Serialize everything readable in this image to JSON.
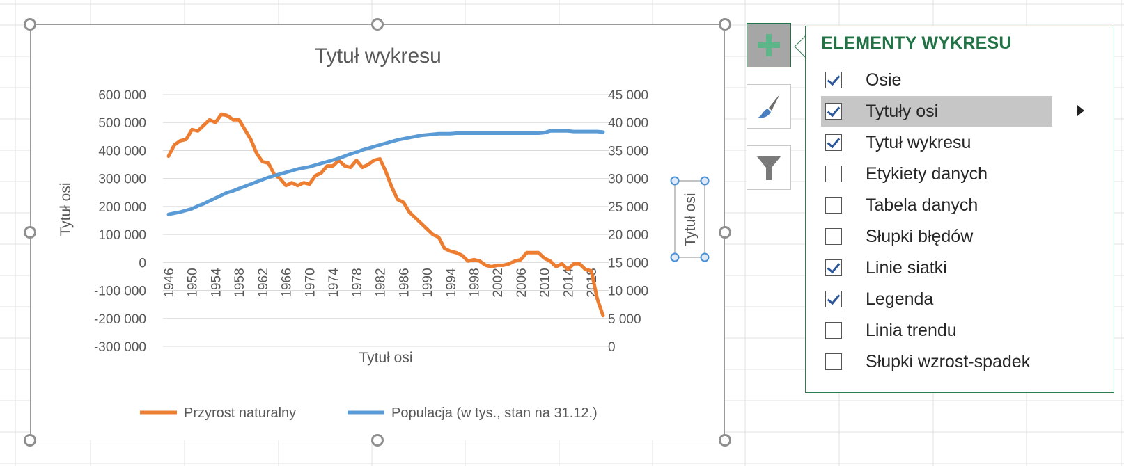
{
  "chart": {
    "title": "Tytuł wykresu",
    "x_axis_title": "Tytuł osi",
    "y_axis_title": "Tytuł osi",
    "y2_axis_title": "Tytuł osi",
    "legend": {
      "series1": "Przyrost naturalny",
      "series2": "Populacja (w tys., stan na 31.12.)"
    },
    "y_ticks": [
      "600 000",
      "500 000",
      "400 000",
      "300 000",
      "200 000",
      "100 000",
      "0",
      "-100 000",
      "-200 000",
      "-300 000"
    ],
    "y2_ticks": [
      "45 000",
      "40 000",
      "35 000",
      "30 000",
      "25 000",
      "20 000",
      "15 000",
      "10 000",
      "5 000",
      "0"
    ],
    "x_ticks": [
      "1946",
      "1950",
      "1954",
      "1958",
      "1962",
      "1966",
      "1970",
      "1974",
      "1978",
      "1982",
      "1986",
      "1990",
      "1994",
      "1998",
      "2002",
      "2006",
      "2010",
      "2014",
      "2018"
    ],
    "colors": {
      "series1": "#ed7d31",
      "series2": "#5b9bd5"
    }
  },
  "chart_data": {
    "type": "line",
    "x": [
      1946,
      1947,
      1948,
      1949,
      1950,
      1951,
      1952,
      1953,
      1954,
      1955,
      1956,
      1957,
      1958,
      1959,
      1960,
      1961,
      1962,
      1963,
      1964,
      1965,
      1966,
      1967,
      1968,
      1969,
      1970,
      1971,
      1972,
      1973,
      1974,
      1975,
      1976,
      1977,
      1978,
      1979,
      1980,
      1981,
      1982,
      1983,
      1984,
      1985,
      1986,
      1987,
      1988,
      1989,
      1990,
      1991,
      1992,
      1993,
      1994,
      1995,
      1996,
      1997,
      1998,
      1999,
      2000,
      2001,
      2002,
      2003,
      2004,
      2005,
      2006,
      2007,
      2008,
      2009,
      2010,
      2011,
      2012,
      2013,
      2014,
      2015,
      2016,
      2017,
      2018,
      2019,
      2020
    ],
    "series": [
      {
        "name": "Przyrost naturalny",
        "axis": "left",
        "values": [
          380000,
          420000,
          435000,
          440000,
          475000,
          470000,
          490000,
          510000,
          500000,
          530000,
          525000,
          510000,
          510000,
          475000,
          440000,
          390000,
          360000,
          355000,
          315000,
          300000,
          275000,
          285000,
          275000,
          285000,
          280000,
          310000,
          320000,
          345000,
          345000,
          365000,
          345000,
          340000,
          365000,
          340000,
          350000,
          365000,
          370000,
          325000,
          270000,
          225000,
          215000,
          180000,
          160000,
          140000,
          120000,
          100000,
          90000,
          50000,
          40000,
          35000,
          25000,
          5000,
          10000,
          5000,
          -10000,
          -15000,
          -10000,
          -10000,
          -5000,
          5000,
          10000,
          35000,
          35000,
          35000,
          15000,
          5000,
          -15000,
          -5000,
          -25000,
          -5000,
          -5000,
          -25000,
          -30000,
          -130000,
          -190000
        ]
      },
      {
        "name": "Populacja (w tys., stan na 31.12.)",
        "axis": "right",
        "values": [
          23600,
          23800,
          24000,
          24300,
          24600,
          25100,
          25500,
          26000,
          26500,
          27000,
          27500,
          27800,
          28200,
          28600,
          29000,
          29400,
          29800,
          30200,
          30500,
          30800,
          31100,
          31400,
          31700,
          31900,
          32100,
          32400,
          32700,
          33000,
          33300,
          33600,
          34000,
          34400,
          34700,
          35100,
          35400,
          35700,
          36000,
          36300,
          36600,
          36900,
          37100,
          37300,
          37500,
          37700,
          37800,
          37900,
          38000,
          38000,
          38000,
          38100,
          38100,
          38100,
          38100,
          38100,
          38100,
          38100,
          38100,
          38100,
          38100,
          38100,
          38100,
          38100,
          38100,
          38100,
          38200,
          38500,
          38500,
          38500,
          38500,
          38400,
          38400,
          38400,
          38400,
          38400,
          38300
        ]
      }
    ],
    "title": "Tytuł wykresu",
    "xlabel": "Tytuł osi",
    "ylabel": "Tytuł osi",
    "y2label": "Tytuł osi",
    "ylim": [
      -300000,
      600000
    ],
    "y2lim": [
      0,
      45000
    ],
    "grid": true,
    "legend_position": "bottom"
  },
  "panel": {
    "title": "ELEMENTY WYKRESU",
    "items": [
      {
        "label": "Osie",
        "checked": true
      },
      {
        "label": "Tytuły osi",
        "checked": true
      },
      {
        "label": "Tytuł wykresu",
        "checked": true
      },
      {
        "label": "Etykiety danych",
        "checked": false
      },
      {
        "label": "Tabela danych",
        "checked": false
      },
      {
        "label": "Słupki błędów",
        "checked": false
      },
      {
        "label": "Linie siatki",
        "checked": true
      },
      {
        "label": "Legenda",
        "checked": true
      },
      {
        "label": "Linia trendu",
        "checked": false
      },
      {
        "label": "Słupki wzrost-spadek",
        "checked": false
      }
    ]
  },
  "side_buttons": {
    "elements_icon": "plus-icon",
    "styles_icon": "paintbrush-icon",
    "filters_icon": "funnel-icon"
  }
}
